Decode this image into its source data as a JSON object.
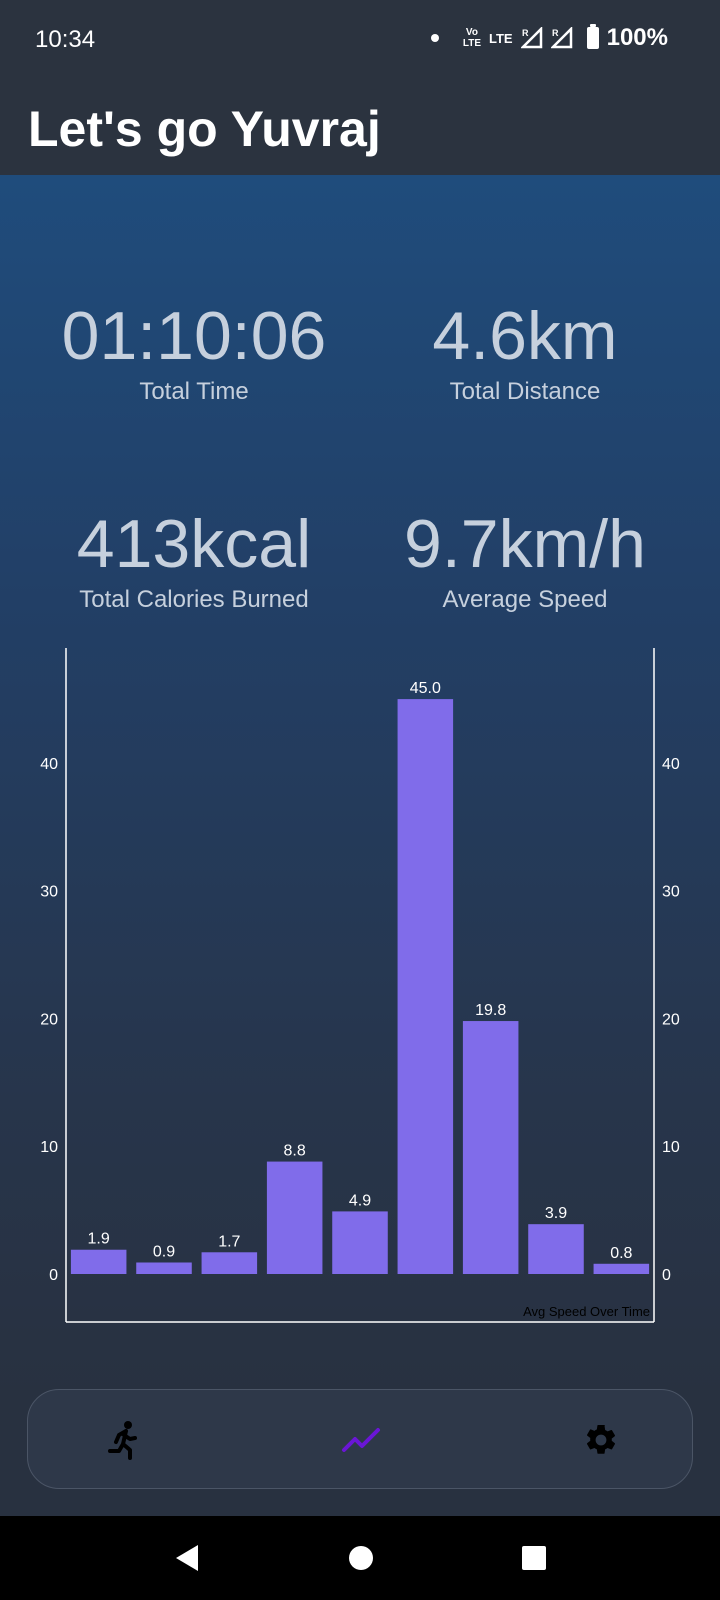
{
  "status_bar": {
    "time": "10:34",
    "volte_line1": "Vo",
    "volte_line2": "LTE",
    "lte": "LTE",
    "roaming1": "R",
    "roaming2": "R",
    "battery": "100%"
  },
  "header": {
    "title": "Let's go Yuvraj"
  },
  "stats": {
    "total_time": {
      "value": "01:10:06",
      "label": "Total Time"
    },
    "total_distance": {
      "value": "4.6km",
      "label": "Total Distance"
    },
    "total_calories": {
      "value": "413kcal",
      "label": "Total Calories Burned"
    },
    "average_speed": {
      "value": "9.7km/h",
      "label": "Average Speed"
    }
  },
  "chart_data": {
    "type": "bar",
    "values": [
      1.9,
      0.9,
      1.7,
      8.8,
      4.9,
      45.0,
      19.8,
      3.9,
      0.8
    ],
    "value_labels": [
      "1.9",
      "0.9",
      "1.7",
      "8.8",
      "4.9",
      "45.0",
      "19.8",
      "3.9",
      "0.8"
    ],
    "ylim": [
      0,
      49
    ],
    "yticks": [
      0,
      10,
      20,
      30,
      40
    ],
    "description_label": "Avg Speed Over Time",
    "bar_color": "#806cea",
    "grid": false,
    "legend": "none"
  },
  "bottom_nav": {
    "items": [
      {
        "name": "run",
        "icon": "run-icon",
        "active": false
      },
      {
        "name": "stats",
        "icon": "trend-icon",
        "active": true
      },
      {
        "name": "settings",
        "icon": "gear-icon",
        "active": false
      }
    ],
    "active_color": "#6a16d6",
    "icon_color": "#000000"
  }
}
